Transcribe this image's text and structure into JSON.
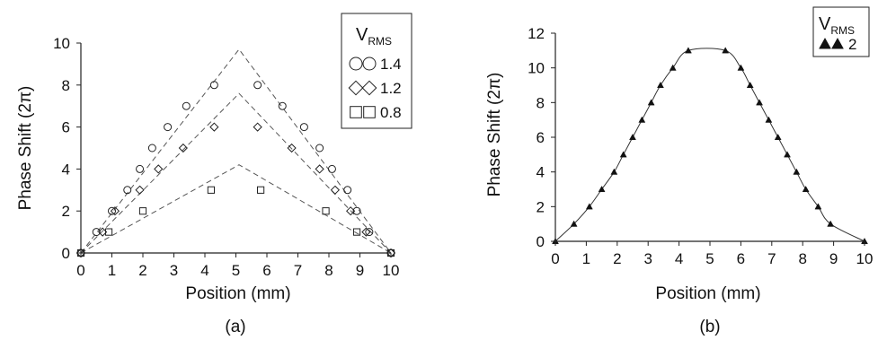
{
  "chart_data": [
    {
      "type": "scatter",
      "panel_label": "(a)",
      "xlabel": "Position (mm)",
      "ylabel": "Phase Shift (2π)",
      "xlim": [
        0,
        10
      ],
      "ylim": [
        0,
        10
      ],
      "xticks": [
        "0",
        "1",
        "2",
        "3",
        "4",
        "5",
        "6",
        "7",
        "8",
        "9",
        "10"
      ],
      "yticks": [
        "0",
        "2",
        "4",
        "6",
        "8",
        "10"
      ],
      "legend": {
        "title_main": "V",
        "title_sub": "RMS",
        "placement": "top-right"
      },
      "series": [
        {
          "name": "1.4",
          "marker": "circle",
          "points": [
            [
              0,
              0
            ],
            [
              0.5,
              1
            ],
            [
              1.0,
              2
            ],
            [
              1.5,
              3
            ],
            [
              1.9,
              4
            ],
            [
              2.3,
              5
            ],
            [
              2.8,
              6
            ],
            [
              3.4,
              7
            ],
            [
              4.3,
              8
            ],
            [
              5.7,
              8
            ],
            [
              6.5,
              7
            ],
            [
              7.2,
              6
            ],
            [
              7.7,
              5
            ],
            [
              8.1,
              4
            ],
            [
              8.6,
              3
            ],
            [
              8.9,
              2
            ],
            [
              9.3,
              1
            ],
            [
              10,
              0
            ]
          ],
          "fit": [
            [
              0,
              0
            ],
            [
              5.1,
              9.7
            ],
            [
              10,
              0
            ]
          ]
        },
        {
          "name": "1.2",
          "marker": "diamond",
          "points": [
            [
              0,
              0
            ],
            [
              0.7,
              1
            ],
            [
              1.1,
              2
            ],
            [
              1.9,
              3
            ],
            [
              2.5,
              4
            ],
            [
              3.3,
              5
            ],
            [
              4.3,
              6
            ],
            [
              5.7,
              6
            ],
            [
              6.8,
              5
            ],
            [
              7.7,
              4
            ],
            [
              8.2,
              3
            ],
            [
              8.7,
              2
            ],
            [
              9.2,
              1
            ],
            [
              10,
              0
            ]
          ],
          "fit": [
            [
              0,
              0
            ],
            [
              5.1,
              7.6
            ],
            [
              10,
              0
            ]
          ]
        },
        {
          "name": "0.8",
          "marker": "square",
          "points": [
            [
              0,
              0
            ],
            [
              0.9,
              1
            ],
            [
              2.0,
              2
            ],
            [
              4.2,
              3
            ],
            [
              5.8,
              3
            ],
            [
              7.9,
              2
            ],
            [
              8.9,
              1
            ],
            [
              10,
              0
            ]
          ],
          "fit": [
            [
              0,
              0
            ],
            [
              5.1,
              4.2
            ],
            [
              10,
              0
            ]
          ]
        }
      ]
    },
    {
      "type": "line",
      "panel_label": "(b)",
      "xlabel": "Position (mm)",
      "ylabel": "Phase Shift (2π)",
      "xlim": [
        0,
        10
      ],
      "ylim": [
        0,
        12
      ],
      "xticks": [
        "0",
        "1",
        "2",
        "3",
        "4",
        "5",
        "6",
        "7",
        "8",
        "9",
        "10"
      ],
      "yticks": [
        "0",
        "2",
        "4",
        "6",
        "8",
        "10",
        "12"
      ],
      "legend": {
        "title_main": "V",
        "title_sub": "RMS",
        "placement": "top-right"
      },
      "series": [
        {
          "name": "2",
          "marker": "triangle",
          "points": [
            [
              0,
              0
            ],
            [
              0.6,
              1
            ],
            [
              1.1,
              2
            ],
            [
              1.5,
              3
            ],
            [
              1.9,
              4
            ],
            [
              2.2,
              5
            ],
            [
              2.5,
              6
            ],
            [
              2.8,
              7
            ],
            [
              3.1,
              8
            ],
            [
              3.4,
              9
            ],
            [
              3.8,
              10
            ],
            [
              4.3,
              11
            ],
            [
              5.5,
              11
            ],
            [
              6.0,
              10
            ],
            [
              6.3,
              9
            ],
            [
              6.6,
              8
            ],
            [
              6.9,
              7
            ],
            [
              7.2,
              6
            ],
            [
              7.5,
              5
            ],
            [
              7.8,
              4
            ],
            [
              8.1,
              3
            ],
            [
              8.5,
              2
            ],
            [
              8.9,
              1
            ],
            [
              10,
              0
            ]
          ]
        }
      ]
    }
  ]
}
